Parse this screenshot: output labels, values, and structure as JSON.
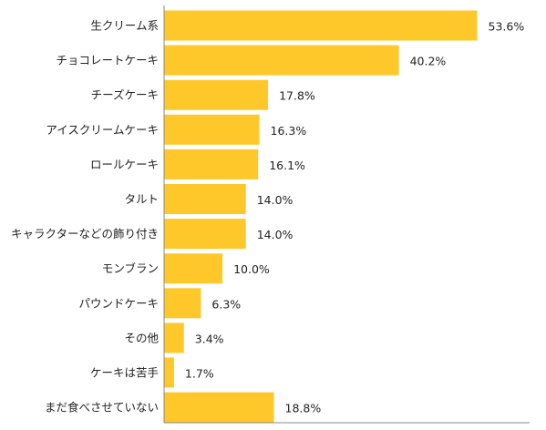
{
  "chart_data": {
    "type": "bar",
    "orientation": "horizontal",
    "categories": [
      "生クリーム系",
      "チョコレートケーキ",
      "チーズケーキ",
      "アイスクリームケーキ",
      "ロールケーキ",
      "タルト",
      "キャラクターなどの飾り付き",
      "モンブラン",
      "パウンドケーキ",
      "その他",
      "ケーキは苦手",
      "まだ食べさせていない"
    ],
    "values": [
      53.6,
      40.2,
      17.8,
      16.3,
      16.1,
      14.0,
      14.0,
      10.0,
      6.3,
      3.4,
      1.7,
      18.8
    ],
    "value_labels": [
      "53.6%",
      "40.2%",
      "17.8%",
      "16.3%",
      "16.1%",
      "14.0%",
      "14.0%",
      "10.0%",
      "6.3%",
      "3.4%",
      "1.7%",
      "18.8%"
    ],
    "unit": "%",
    "xlim": [
      0,
      65
    ],
    "grid": false,
    "bar_color": "#FFC82A",
    "axis_color": "#888888"
  }
}
